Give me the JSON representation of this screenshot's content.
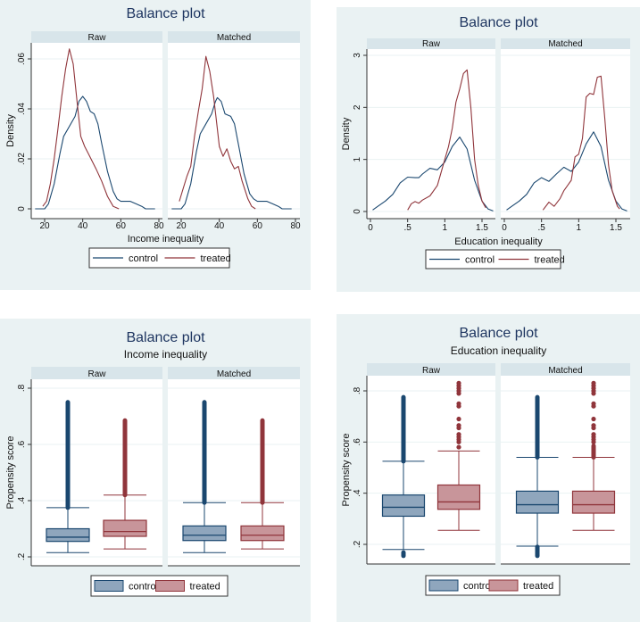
{
  "colors": {
    "control": "#1a476f",
    "treated": "#90353b",
    "control_fill": "#8fa6bd",
    "treated_fill": "#c8959a",
    "panel_bg": "#eaf2f3",
    "strip_bg": "#d8e5ea"
  },
  "chart_data": [
    {
      "type": "line",
      "title": "Balance plot",
      "subtitle": "",
      "facets": [
        "Raw",
        "Matched"
      ],
      "xlabel": "Income inequality",
      "ylabel": "Density",
      "xlim": [
        15,
        80
      ],
      "ylim": [
        0,
        0.065
      ],
      "xticks": [
        20,
        40,
        60,
        80
      ],
      "xtick_labels": [
        "20",
        "40",
        "60",
        "80"
      ],
      "yticks": [
        0,
        0.02,
        0.04,
        0.06
      ],
      "ytick_labels": [
        "0",
        ".02",
        ".04",
        ".06"
      ],
      "legend": [
        "control",
        "treated"
      ],
      "legend_position": "bottom",
      "series": [
        {
          "facet": "Raw",
          "name": "control",
          "points": [
            [
              15,
              0
            ],
            [
              20,
              0
            ],
            [
              22,
              0.002
            ],
            [
              25,
              0.01
            ],
            [
              28,
              0.022
            ],
            [
              30,
              0.029
            ],
            [
              33,
              0.033
            ],
            [
              36,
              0.037
            ],
            [
              38,
              0.043
            ],
            [
              40,
              0.045
            ],
            [
              42,
              0.043
            ],
            [
              44,
              0.039
            ],
            [
              46,
              0.038
            ],
            [
              48,
              0.034
            ],
            [
              50,
              0.026
            ],
            [
              53,
              0.015
            ],
            [
              56,
              0.007
            ],
            [
              58,
              0.004
            ],
            [
              60,
              0.003
            ],
            [
              65,
              0.003
            ],
            [
              68,
              0.002
            ],
            [
              71,
              0.001
            ],
            [
              73,
              0
            ],
            [
              78,
              0
            ]
          ]
        },
        {
          "facet": "Raw",
          "name": "treated",
          "points": [
            [
              19,
              0.001
            ],
            [
              21,
              0.003
            ],
            [
              23,
              0.01
            ],
            [
              25,
              0.02
            ],
            [
              27,
              0.032
            ],
            [
              29,
              0.045
            ],
            [
              31,
              0.056
            ],
            [
              33,
              0.064
            ],
            [
              35,
              0.058
            ],
            [
              37,
              0.043
            ],
            [
              39,
              0.029
            ],
            [
              41,
              0.025
            ],
            [
              43,
              0.022
            ],
            [
              45,
              0.019
            ],
            [
              47,
              0.016
            ],
            [
              50,
              0.011
            ],
            [
              53,
              0.005
            ],
            [
              56,
              0.001
            ],
            [
              59,
              0
            ]
          ]
        },
        {
          "facet": "Matched",
          "name": "control",
          "points": [
            [
              15,
              0
            ],
            [
              20,
              0
            ],
            [
              22,
              0.002
            ],
            [
              25,
              0.01
            ],
            [
              28,
              0.023
            ],
            [
              30,
              0.03
            ],
            [
              33,
              0.034
            ],
            [
              36,
              0.038
            ],
            [
              38,
              0.043
            ],
            [
              39,
              0.0445
            ],
            [
              41,
              0.043
            ],
            [
              43,
              0.038
            ],
            [
              46,
              0.037
            ],
            [
              48,
              0.034
            ],
            [
              50,
              0.026
            ],
            [
              53,
              0.014
            ],
            [
              56,
              0.006
            ],
            [
              58,
              0.004
            ],
            [
              60,
              0.003
            ],
            [
              65,
              0.003
            ],
            [
              68,
              0.002
            ],
            [
              71,
              0.001
            ],
            [
              73,
              0
            ],
            [
              78,
              0
            ]
          ]
        },
        {
          "facet": "Matched",
          "name": "treated",
          "points": [
            [
              19,
              0.003
            ],
            [
              21,
              0.008
            ],
            [
              23,
              0.013
            ],
            [
              25,
              0.017
            ],
            [
              27,
              0.029
            ],
            [
              29,
              0.039
            ],
            [
              31,
              0.048
            ],
            [
              33,
              0.061
            ],
            [
              35,
              0.055
            ],
            [
              37,
              0.045
            ],
            [
              39,
              0.032
            ],
            [
              40,
              0.025
            ],
            [
              42,
              0.021
            ],
            [
              44,
              0.024
            ],
            [
              46,
              0.019
            ],
            [
              48,
              0.016
            ],
            [
              50,
              0.017
            ],
            [
              52,
              0.011
            ],
            [
              55,
              0.004
            ],
            [
              57,
              0.001
            ],
            [
              59,
              0
            ]
          ]
        }
      ]
    },
    {
      "type": "line",
      "title": "Balance plot",
      "subtitle": "",
      "facets": [
        "Raw",
        "Matched"
      ],
      "xlabel": "Education inequality",
      "ylabel": "Density",
      "xlim": [
        -0.05,
        1.7
      ],
      "ylim": [
        0,
        3.05
      ],
      "xticks": [
        0,
        0.5,
        1,
        1.5
      ],
      "xtick_labels": [
        "0",
        ".5",
        "1",
        "1.5"
      ],
      "yticks": [
        0,
        1,
        2,
        3
      ],
      "ytick_labels": [
        "0",
        "1",
        "2",
        "3"
      ],
      "legend": [
        "control",
        "treated"
      ],
      "legend_position": "bottom",
      "series": [
        {
          "facet": "Raw",
          "name": "control",
          "points": [
            [
              0.03,
              0.03
            ],
            [
              0.1,
              0.1
            ],
            [
              0.2,
              0.2
            ],
            [
              0.3,
              0.33
            ],
            [
              0.4,
              0.55
            ],
            [
              0.5,
              0.66
            ],
            [
              0.6,
              0.65
            ],
            [
              0.65,
              0.65
            ],
            [
              0.7,
              0.72
            ],
            [
              0.8,
              0.83
            ],
            [
              0.9,
              0.8
            ],
            [
              1.0,
              0.95
            ],
            [
              1.1,
              1.25
            ],
            [
              1.2,
              1.43
            ],
            [
              1.3,
              1.2
            ],
            [
              1.4,
              0.6
            ],
            [
              1.5,
              0.2
            ],
            [
              1.58,
              0.05
            ],
            [
              1.65,
              0.01
            ]
          ]
        },
        {
          "facet": "Raw",
          "name": "treated",
          "points": [
            [
              0.5,
              0.03
            ],
            [
              0.55,
              0.15
            ],
            [
              0.6,
              0.19
            ],
            [
              0.65,
              0.16
            ],
            [
              0.7,
              0.22
            ],
            [
              0.8,
              0.3
            ],
            [
              0.9,
              0.5
            ],
            [
              1.0,
              1.0
            ],
            [
              1.05,
              1.25
            ],
            [
              1.1,
              1.6
            ],
            [
              1.15,
              2.1
            ],
            [
              1.2,
              2.35
            ],
            [
              1.25,
              2.65
            ],
            [
              1.3,
              2.72
            ],
            [
              1.35,
              2.0
            ],
            [
              1.4,
              1.0
            ],
            [
              1.45,
              0.5
            ],
            [
              1.5,
              0.2
            ],
            [
              1.55,
              0.07
            ]
          ]
        },
        {
          "facet": "Matched",
          "name": "control",
          "points": [
            [
              0.03,
              0.03
            ],
            [
              0.1,
              0.1
            ],
            [
              0.2,
              0.2
            ],
            [
              0.3,
              0.33
            ],
            [
              0.4,
              0.55
            ],
            [
              0.5,
              0.65
            ],
            [
              0.6,
              0.58
            ],
            [
              0.7,
              0.72
            ],
            [
              0.8,
              0.85
            ],
            [
              0.9,
              0.77
            ],
            [
              1.0,
              0.95
            ],
            [
              1.1,
              1.3
            ],
            [
              1.2,
              1.53
            ],
            [
              1.3,
              1.25
            ],
            [
              1.4,
              0.6
            ],
            [
              1.5,
              0.2
            ],
            [
              1.58,
              0.05
            ],
            [
              1.65,
              0.01
            ]
          ]
        },
        {
          "facet": "Matched",
          "name": "treated",
          "points": [
            [
              0.52,
              0.03
            ],
            [
              0.6,
              0.18
            ],
            [
              0.67,
              0.1
            ],
            [
              0.75,
              0.25
            ],
            [
              0.8,
              0.4
            ],
            [
              0.9,
              0.6
            ],
            [
              0.95,
              1.05
            ],
            [
              1.0,
              1.1
            ],
            [
              1.05,
              1.4
            ],
            [
              1.1,
              2.2
            ],
            [
              1.15,
              2.27
            ],
            [
              1.2,
              2.25
            ],
            [
              1.25,
              2.58
            ],
            [
              1.3,
              2.6
            ],
            [
              1.35,
              1.8
            ],
            [
              1.4,
              0.9
            ],
            [
              1.45,
              0.4
            ],
            [
              1.52,
              0.1
            ],
            [
              1.55,
              0.05
            ]
          ]
        }
      ]
    },
    {
      "type": "box",
      "title": "Balance plot",
      "subtitle": "Income inequality",
      "facets": [
        "Raw",
        "Matched"
      ],
      "xlabel": "",
      "ylabel": "Propensity score",
      "ylim": [
        0.185,
        0.83
      ],
      "yticks": [
        0.2,
        0.4,
        0.6,
        0.8
      ],
      "ytick_labels": [
        ".2",
        ".4",
        ".6",
        ".8"
      ],
      "legend": [
        "control",
        "treated"
      ],
      "legend_position": "bottom",
      "boxes": [
        {
          "facet": "Raw",
          "name": "control",
          "whisker_low": 0.215,
          "q1": 0.255,
          "median": 0.27,
          "q3": 0.3,
          "whisker_high": 0.375,
          "outlier_ranges": [
            [
              0.375,
              0.75
            ]
          ],
          "outliers": []
        },
        {
          "facet": "Raw",
          "name": "treated",
          "whisker_low": 0.228,
          "q1": 0.273,
          "median": 0.29,
          "q3": 0.33,
          "whisker_high": 0.42,
          "outlier_ranges": [
            [
              0.42,
              0.685
            ]
          ],
          "outliers": []
        },
        {
          "facet": "Matched",
          "name": "control",
          "whisker_low": 0.215,
          "q1": 0.258,
          "median": 0.277,
          "q3": 0.31,
          "whisker_high": 0.393,
          "outlier_ranges": [
            [
              0.393,
              0.75
            ]
          ],
          "outliers": []
        },
        {
          "facet": "Matched",
          "name": "treated",
          "whisker_low": 0.228,
          "q1": 0.258,
          "median": 0.277,
          "q3": 0.31,
          "whisker_high": 0.393,
          "outlier_ranges": [
            [
              0.393,
              0.685
            ]
          ],
          "outliers": []
        }
      ]
    },
    {
      "type": "box",
      "title": "Balance plot",
      "subtitle": "Education inequality",
      "facets": [
        "Raw",
        "Matched"
      ],
      "xlabel": "",
      "ylabel": "Propensity score",
      "ylim": [
        0.13,
        0.87
      ],
      "yticks": [
        0.2,
        0.4,
        0.6,
        0.8
      ],
      "ytick_labels": [
        ".2",
        ".4",
        ".6",
        ".8"
      ],
      "legend": [
        "control",
        "treated"
      ],
      "legend_position": "bottom",
      "boxes": [
        {
          "facet": "Raw",
          "name": "control",
          "whisker_low": 0.18,
          "q1": 0.31,
          "median": 0.345,
          "q3": 0.393,
          "whisker_high": 0.525,
          "outlier_ranges": [
            [
              0.525,
              0.775
            ],
            [
              0.155,
              0.168
            ]
          ],
          "outliers": []
        },
        {
          "facet": "Raw",
          "name": "treated",
          "whisker_low": 0.255,
          "q1": 0.337,
          "median": 0.366,
          "q3": 0.432,
          "whisker_high": 0.565,
          "outlier_ranges": [],
          "outliers": [
            0.58,
            0.6,
            0.61,
            0.62,
            0.63,
            0.655,
            0.665,
            0.69,
            0.74,
            0.75,
            0.79,
            0.8,
            0.81,
            0.82,
            0.83
          ]
        },
        {
          "facet": "Matched",
          "name": "control",
          "whisker_low": 0.193,
          "q1": 0.322,
          "median": 0.355,
          "q3": 0.408,
          "whisker_high": 0.54,
          "outlier_ranges": [
            [
              0.54,
              0.775
            ],
            [
              0.155,
              0.19
            ]
          ],
          "outliers": []
        },
        {
          "facet": "Matched",
          "name": "treated",
          "whisker_low": 0.255,
          "q1": 0.322,
          "median": 0.355,
          "q3": 0.408,
          "whisker_high": 0.54,
          "outlier_ranges": [
            [
              0.54,
              0.585
            ]
          ],
          "outliers": [
            0.6,
            0.61,
            0.62,
            0.63,
            0.655,
            0.665,
            0.69,
            0.74,
            0.75,
            0.79,
            0.8,
            0.81,
            0.82,
            0.83
          ]
        }
      ]
    }
  ]
}
